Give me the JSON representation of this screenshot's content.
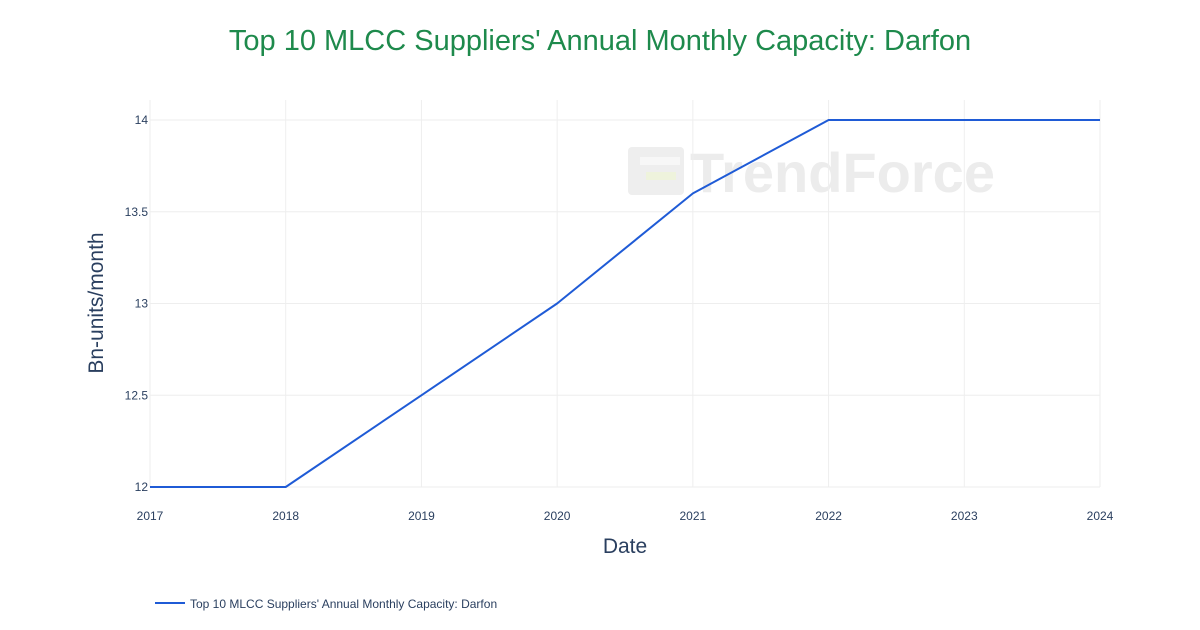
{
  "chart_data": {
    "type": "line",
    "title": "Top 10 MLCC Suppliers' Annual Monthly Capacity: Darfon",
    "xlabel": "Date",
    "ylabel": "Bn-units/month",
    "x": [
      "2017",
      "2018",
      "2019",
      "2020",
      "2021",
      "2022",
      "2023",
      "2024"
    ],
    "series": [
      {
        "name": "Top 10 MLCC Suppliers' Annual Monthly Capacity: Darfon",
        "values": [
          12,
          12,
          12.5,
          13,
          13.6,
          14,
          14,
          14
        ]
      }
    ],
    "xticks": [
      "2017",
      "2018",
      "2019",
      "2020",
      "2021",
      "2022",
      "2023",
      "2024"
    ],
    "yticks": [
      "12",
      "12.5",
      "13",
      "13.5",
      "14"
    ],
    "ylim": [
      12,
      14
    ],
    "grid": true,
    "legend_position": "bottom-left"
  },
  "watermark": {
    "text": "TrendForce"
  },
  "colors": {
    "title": "#1e8a4c",
    "series": "#1f5bd6",
    "grid": "#eeeeee",
    "text": "#2a3f5f",
    "watermark": "#ececec"
  }
}
